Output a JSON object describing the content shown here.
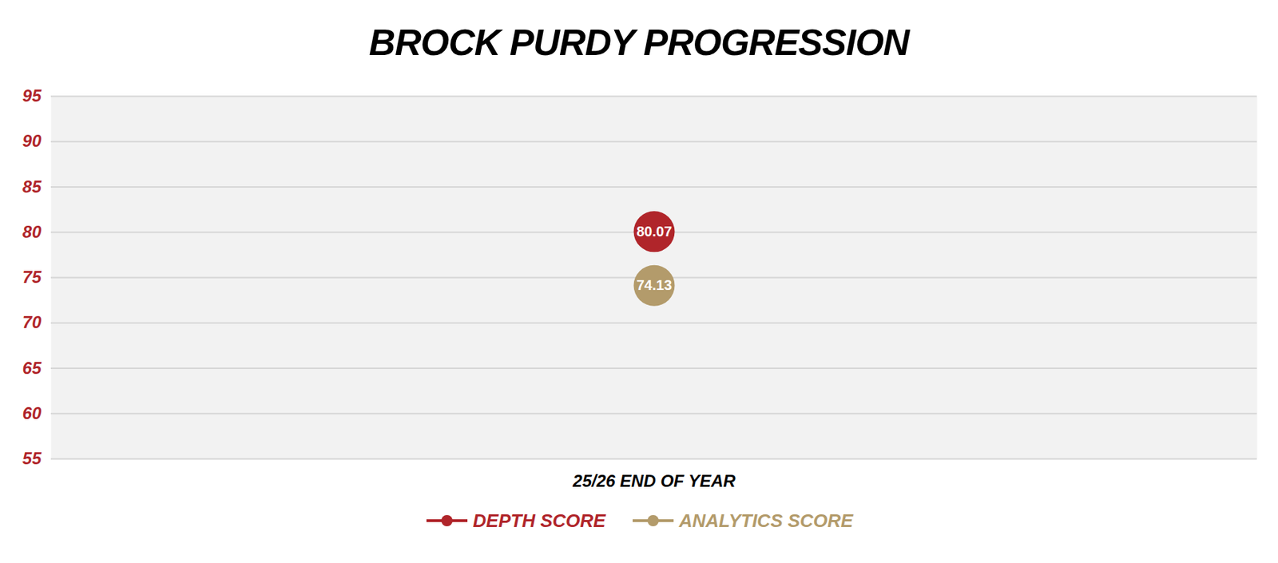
{
  "chart_data": {
    "type": "line",
    "title": "BROCK PURDY PROGRESSION",
    "categories": [
      "25/26 END OF YEAR"
    ],
    "series": [
      {
        "name": "DEPTH SCORE",
        "color": "#b0252a",
        "values": [
          80.07
        ]
      },
      {
        "name": "ANALYTICS SCORE",
        "color": "#b39b6b",
        "values": [
          74.13
        ]
      }
    ],
    "ylim": [
      55,
      95
    ],
    "yticks": [
      55,
      60,
      65,
      70,
      75,
      80,
      85,
      90,
      95
    ],
    "grid": true,
    "data_labels": true,
    "legend": "bottom",
    "marker": "circle"
  }
}
